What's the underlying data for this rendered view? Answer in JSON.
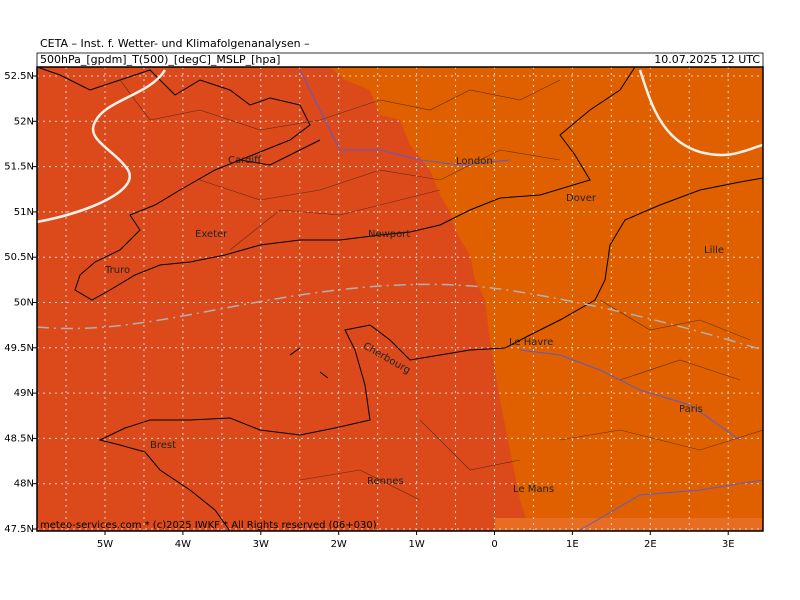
{
  "header": {
    "title": "CETA – Inst. f. Wetter- und Klimafolgenanalysen –",
    "product": "500hPa_[gpdm]_T(500)_[degC]_MSLP_[hpa]",
    "datetime": "10.07.2025 12 UTC"
  },
  "axes": {
    "lat_labels": [
      "52.5N",
      "52N",
      "51.5N",
      "51N",
      "50.5N",
      "50N",
      "49.5N",
      "49N",
      "48.5N",
      "48N",
      "47.5N"
    ],
    "lon_labels": [
      "5W",
      "4W",
      "3W",
      "2W",
      "1W",
      "0",
      "1E",
      "2E",
      "3E"
    ]
  },
  "places": [
    "Cardiff",
    "London",
    "Dover",
    "Exeter",
    "Newport",
    "Lille",
    "Truro",
    "Le Havre",
    "Cherbourg",
    "Paris",
    "Brest",
    "Rennes",
    "Le Mans"
  ],
  "footer": "meteo-services.com * (c)2025 IWKF * All Rights reserved (06+030)"
}
